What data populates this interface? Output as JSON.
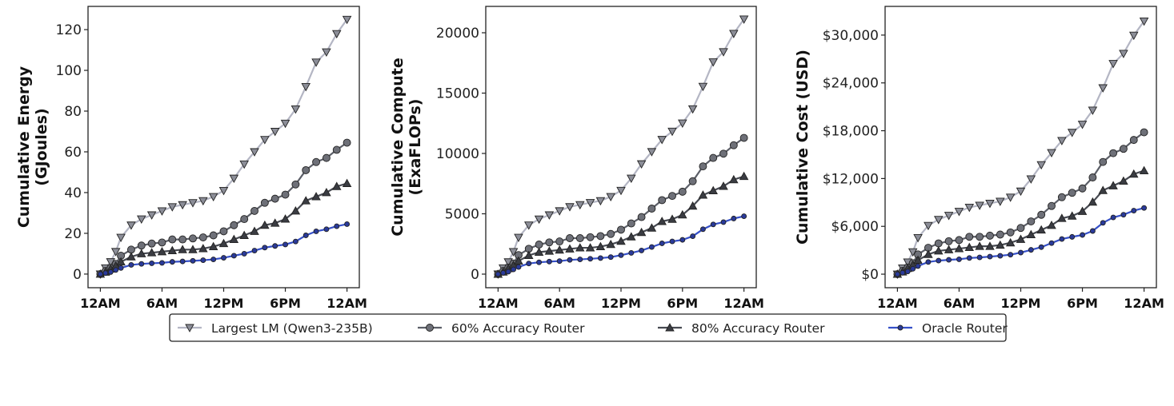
{
  "legend": {
    "placement": "bottom-center",
    "entries": [
      "Largest LM (Qwen3-235B)",
      "60% Accuracy Router",
      "80% Accuracy Router",
      "Oracle Router"
    ]
  },
  "styles": [
    {
      "line": "#b4b6c4",
      "fill": "#8c8e98",
      "marker": "triangle-down"
    },
    {
      "line": "#5c5f68",
      "fill": "#6e7078",
      "marker": "circle"
    },
    {
      "line": "#474a52",
      "fill": "#3a3c42",
      "marker": "triangle-up"
    },
    {
      "line": "#3550c8",
      "fill": "#2a3a9a",
      "marker": "small-circle"
    }
  ],
  "chart_data": [
    {
      "type": "line",
      "ylabel": [
        "Cumulative Energy",
        "(GJoules)"
      ],
      "xtick_labels": [
        "12AM",
        "6AM",
        "12PM",
        "6PM",
        "12AM"
      ],
      "xtick_hours": [
        0,
        6,
        12,
        18,
        24
      ],
      "xlim": [
        -1.2,
        25.2
      ],
      "ylim": [
        -6.7,
        131.4
      ],
      "yticks": [
        0,
        20,
        40,
        60,
        80,
        100,
        120
      ],
      "ytick_labels": [
        "0",
        "20",
        "40",
        "60",
        "80",
        "100",
        "120"
      ],
      "grid": false,
      "x": [
        0,
        0.5,
        1,
        1.5,
        2,
        3,
        4,
        5,
        6,
        7,
        8,
        9,
        10,
        11,
        12,
        13,
        14,
        15,
        16,
        17,
        18,
        19,
        20,
        21,
        22,
        23,
        24
      ],
      "series": [
        {
          "name": "Largest LM (Qwen3-235B)",
          "values": [
            0,
            3,
            6,
            11,
            18,
            24,
            27,
            29,
            31,
            33,
            34,
            35,
            36,
            38,
            41,
            47,
            54,
            60,
            66,
            70,
            74,
            81,
            92,
            104,
            109,
            118,
            125
          ]
        },
        {
          "name": "60% Accuracy Router",
          "values": [
            0,
            1.5,
            3,
            5,
            9,
            12,
            14,
            15,
            15.5,
            17,
            17,
            17.5,
            18,
            19,
            21,
            24,
            27,
            31,
            35,
            37,
            39,
            44,
            51,
            55,
            57,
            61,
            64.5
          ]
        },
        {
          "name": "80% Accuracy Router",
          "values": [
            0,
            1,
            2.5,
            4,
            6,
            8.5,
            10,
            10.5,
            11,
            11.5,
            12,
            12,
            12.5,
            13.5,
            15,
            17,
            19,
            21,
            24,
            25,
            27,
            31,
            36,
            38,
            40,
            43,
            44.5
          ]
        },
        {
          "name": "Oracle Router",
          "values": [
            0,
            0.5,
            1,
            2,
            3,
            4.5,
            5,
            5.3,
            5.5,
            6,
            6.2,
            6.5,
            6.8,
            7.2,
            8,
            9,
            10,
            11.5,
            13,
            13.8,
            14.5,
            16,
            19,
            21,
            22,
            23.5,
            24.5
          ]
        }
      ]
    },
    {
      "type": "line",
      "ylabel": [
        "Cumulative Compute",
        "(ExaFLOPs)"
      ],
      "xtick_labels": [
        "12AM",
        "6AM",
        "12PM",
        "6PM",
        "12AM"
      ],
      "xtick_hours": [
        0,
        6,
        12,
        18,
        24
      ],
      "xlim": [
        -1.2,
        25.2
      ],
      "ylim": [
        -1126,
        22185
      ],
      "yticks": [
        0,
        5000,
        10000,
        15000,
        20000
      ],
      "ytick_labels": [
        "0",
        "5000",
        "10000",
        "15000",
        "20000"
      ],
      "grid": false,
      "x": [
        0,
        0.5,
        1,
        1.5,
        2,
        3,
        4,
        5,
        6,
        7,
        8,
        9,
        10,
        11,
        12,
        13,
        14,
        15,
        16,
        17,
        18,
        19,
        20,
        21,
        22,
        23,
        24
      ],
      "series": [
        {
          "name": "Largest LM (Qwen3-235B)",
          "values": [
            0,
            510,
            1010,
            1860,
            3040,
            4060,
            4560,
            4900,
            5240,
            5580,
            5750,
            5920,
            6080,
            6420,
            6930,
            7940,
            9130,
            10140,
            11150,
            11830,
            12510,
            13690,
            15550,
            17580,
            18420,
            19940,
            21130
          ]
        },
        {
          "name": "60% Accuracy Router",
          "values": [
            0,
            260,
            530,
            880,
            1580,
            2100,
            2450,
            2630,
            2710,
            2980,
            2980,
            3060,
            3150,
            3330,
            3680,
            4200,
            4730,
            5430,
            6130,
            6480,
            6830,
            7700,
            8930,
            9630,
            9980,
            10680,
            11290
          ]
        },
        {
          "name": "80% Accuracy Router",
          "values": [
            0,
            180,
            460,
            730,
            1090,
            1550,
            1820,
            1910,
            2000,
            2090,
            2180,
            2180,
            2280,
            2460,
            2730,
            3090,
            3460,
            3820,
            4370,
            4550,
            4910,
            5640,
            6550,
            6920,
            7280,
            7830,
            8100
          ]
        },
        {
          "name": "Oracle Router",
          "values": [
            0,
            100,
            200,
            390,
            590,
            880,
            980,
            1040,
            1080,
            1180,
            1220,
            1270,
            1330,
            1410,
            1570,
            1760,
            1960,
            2250,
            2550,
            2710,
            2840,
            3140,
            3720,
            4120,
            4310,
            4610,
            4800
          ]
        }
      ]
    },
    {
      "type": "line",
      "ylabel": [
        "Cumulative Cost (USD)"
      ],
      "xtick_labels": [
        "12AM",
        "6AM",
        "12PM",
        "6PM",
        "12AM"
      ],
      "xtick_hours": [
        0,
        6,
        12,
        18,
        24
      ],
      "xlim": [
        -1.2,
        25.2
      ],
      "ylim": [
        -1700,
        33600
      ],
      "yticks": [
        0,
        6000,
        12000,
        18000,
        24000,
        30000
      ],
      "ytick_labels": [
        "$0",
        "$6,000",
        "$12,000",
        "$18,000",
        "$24,000",
        "$30,000"
      ],
      "grid": false,
      "x": [
        0,
        0.5,
        1,
        1.5,
        2,
        3,
        4,
        5,
        6,
        7,
        8,
        9,
        10,
        11,
        12,
        13,
        14,
        15,
        16,
        17,
        18,
        19,
        20,
        21,
        22,
        23,
        24
      ],
      "series": [
        {
          "name": "Largest LM (Qwen3-235B)",
          "values": [
            0,
            760,
            1520,
            2790,
            4570,
            6100,
            6860,
            7370,
            7870,
            8380,
            8640,
            8890,
            9140,
            9650,
            10410,
            11940,
            13720,
            15240,
            16760,
            17780,
            18800,
            20570,
            23370,
            26420,
            27690,
            29970,
            31750
          ]
        },
        {
          "name": "60% Accuracy Router",
          "values": [
            0,
            410,
            830,
            1380,
            2480,
            3310,
            3860,
            4140,
            4280,
            4690,
            4690,
            4830,
            4970,
            5240,
            5800,
            6620,
            7450,
            8560,
            9660,
            10210,
            10760,
            12140,
            14080,
            15180,
            15730,
            16840,
            17800
          ]
        },
        {
          "name": "80% Accuracy Router",
          "values": [
            0,
            290,
            730,
            1170,
            1750,
            2480,
            2920,
            3070,
            3210,
            3360,
            3500,
            3500,
            3650,
            3940,
            4380,
            4960,
            5550,
            6130,
            7010,
            7300,
            7880,
            9050,
            10510,
            11100,
            11680,
            12560,
            12990
          ]
        },
        {
          "name": "Oracle Router",
          "values": [
            0,
            170,
            340,
            680,
            1020,
            1530,
            1700,
            1800,
            1870,
            2030,
            2100,
            2200,
            2310,
            2440,
            2710,
            3050,
            3390,
            3900,
            4410,
            4680,
            4920,
            5420,
            6440,
            7120,
            7460,
            7970,
            8310
          ]
        }
      ]
    }
  ]
}
